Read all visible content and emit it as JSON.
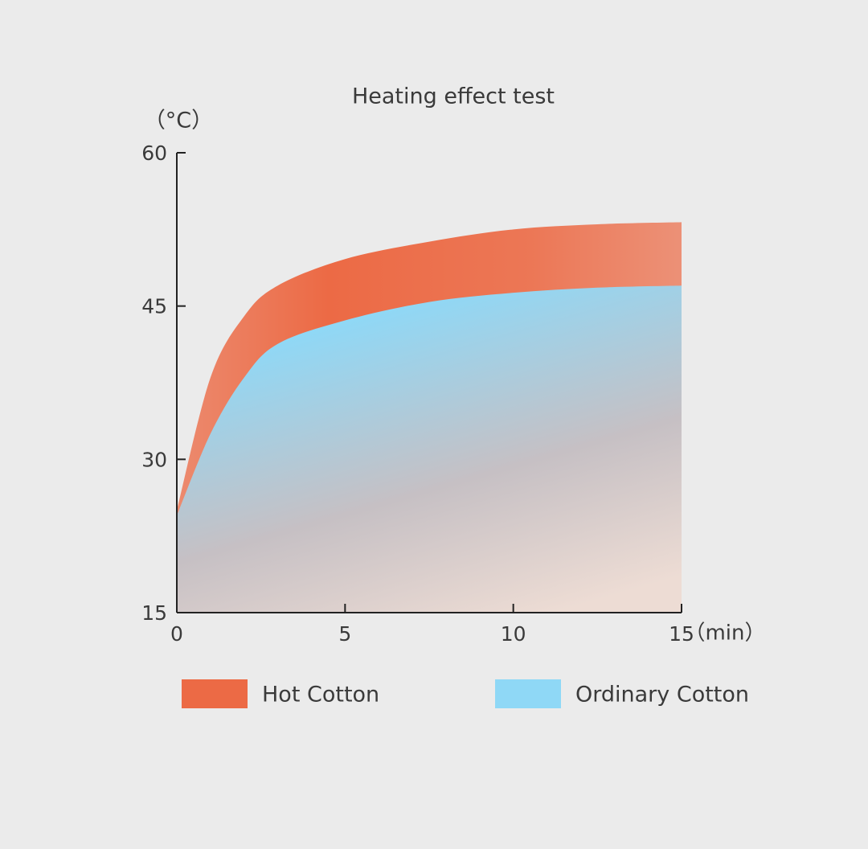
{
  "chart_data": {
    "type": "area",
    "title": "Heating effect test",
    "y_label": "（°C）",
    "x_label": "（min）",
    "x": [
      0,
      1,
      2,
      3,
      5,
      7.5,
      10,
      12.5,
      15
    ],
    "series": [
      {
        "name": "Hot Cotton",
        "color": "#ec6a45",
        "values": [
          25,
          38,
          44,
          47,
          49.6,
          51.3,
          52.5,
          53,
          53.2
        ]
      },
      {
        "name": "Ordinary Cotton",
        "color": "#8fd8f6",
        "values": [
          24.5,
          32.5,
          38,
          41.3,
          43.6,
          45.4,
          46.3,
          46.8,
          47
        ]
      }
    ],
    "xlim": [
      0,
      15
    ],
    "xticks": [
      0,
      5,
      10,
      15
    ],
    "ylim": [
      15,
      60
    ],
    "yticks": [
      15,
      30,
      45,
      60
    ],
    "grid": false
  }
}
